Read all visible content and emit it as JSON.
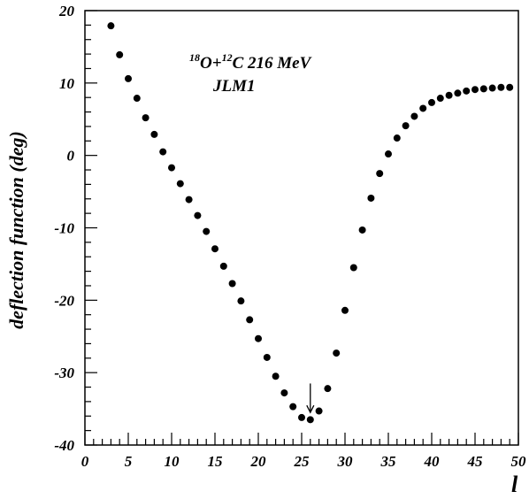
{
  "chart_data": {
    "type": "scatter",
    "title": "",
    "xlabel": "l",
    "ylabel": "deflection function (deg)",
    "xlim": [
      0,
      50
    ],
    "ylim": [
      -40,
      20
    ],
    "x_ticks": [
      0,
      5,
      10,
      15,
      20,
      25,
      30,
      35,
      40,
      45,
      50
    ],
    "y_ticks": [
      -40,
      -30,
      -20,
      -10,
      0,
      10,
      20
    ],
    "grid": false,
    "legend": null,
    "marker_color": "#000000",
    "annotation": {
      "line1": {
        "mass1": "18",
        "el1": "O+",
        "mass2": "12",
        "el2": "C 216 MeV"
      },
      "line2": "JLM1"
    },
    "arrow": {
      "x": 26,
      "y_from": -31.5,
      "y_to": -35.5
    },
    "series": [
      {
        "x": [
          3,
          4,
          5,
          6,
          7,
          8,
          9,
          10,
          11,
          12,
          13,
          14,
          15,
          16,
          17,
          18,
          19,
          20,
          21,
          22,
          23,
          24,
          25,
          26,
          27,
          28,
          29,
          30,
          31,
          32,
          33,
          34,
          35,
          36,
          37,
          38,
          39,
          40,
          41,
          42,
          43,
          44,
          45,
          46,
          47,
          48,
          49
        ],
        "y": [
          17.9,
          13.9,
          10.6,
          7.9,
          5.2,
          2.9,
          0.5,
          -1.7,
          -3.9,
          -6.1,
          -8.3,
          -10.5,
          -12.9,
          -15.3,
          -17.7,
          -20.1,
          -22.7,
          -25.3,
          -27.9,
          -30.5,
          -32.8,
          -34.7,
          -36.2,
          -36.5,
          -35.3,
          -32.2,
          -27.3,
          -21.4,
          -15.5,
          -10.3,
          -5.9,
          -2.5,
          0.2,
          2.4,
          4.1,
          5.4,
          6.5,
          7.3,
          7.9,
          8.3,
          8.6,
          8.9,
          9.1,
          9.2,
          9.3,
          9.4,
          9.4
        ]
      }
    ]
  }
}
